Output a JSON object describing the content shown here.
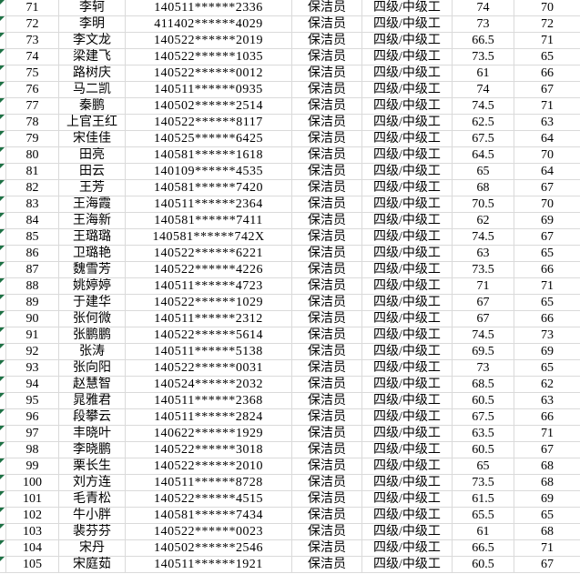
{
  "app": {
    "kind": "spreadsheet-table-view",
    "visible_row_range": "71-105"
  },
  "colors": {
    "background": "#ffffff",
    "gridline": "#dadada",
    "text": "#000000",
    "error_indicator_green": "#1e7145"
  },
  "icons": {
    "error_indicator": "green-triangle-top-left"
  },
  "table": {
    "column_keys": [
      "num",
      "name",
      "id_masked",
      "job",
      "level",
      "score1",
      "score2"
    ],
    "rows": [
      {
        "num": "71",
        "name": "李轲",
        "id_masked": "140511******2336",
        "job": "保洁员",
        "level": "四级/中级工",
        "score1": "74",
        "score2": "70"
      },
      {
        "num": "72",
        "name": "李明",
        "id_masked": "411402******4029",
        "job": "保洁员",
        "level": "四级/中级工",
        "score1": "73",
        "score2": "72"
      },
      {
        "num": "73",
        "name": "李文龙",
        "id_masked": "140522******2019",
        "job": "保洁员",
        "level": "四级/中级工",
        "score1": "66.5",
        "score2": "71"
      },
      {
        "num": "74",
        "name": "梁建飞",
        "id_masked": "140522******1035",
        "job": "保洁员",
        "level": "四级/中级工",
        "score1": "73.5",
        "score2": "65"
      },
      {
        "num": "75",
        "name": "路树庆",
        "id_masked": "140522******0012",
        "job": "保洁员",
        "level": "四级/中级工",
        "score1": "61",
        "score2": "66"
      },
      {
        "num": "76",
        "name": "马二凯",
        "id_masked": "140511******0935",
        "job": "保洁员",
        "level": "四级/中级工",
        "score1": "74",
        "score2": "67"
      },
      {
        "num": "77",
        "name": "秦鹏",
        "id_masked": "140502******2514",
        "job": "保洁员",
        "level": "四级/中级工",
        "score1": "74.5",
        "score2": "71"
      },
      {
        "num": "78",
        "name": "上官王红",
        "id_masked": "140522******8117",
        "job": "保洁员",
        "level": "四级/中级工",
        "score1": "62.5",
        "score2": "63"
      },
      {
        "num": "79",
        "name": "宋佳佳",
        "id_masked": "140525******6425",
        "job": "保洁员",
        "level": "四级/中级工",
        "score1": "67.5",
        "score2": "64"
      },
      {
        "num": "80",
        "name": "田亮",
        "id_masked": "140581******1618",
        "job": "保洁员",
        "level": "四级/中级工",
        "score1": "64.5",
        "score2": "70"
      },
      {
        "num": "81",
        "name": "田云",
        "id_masked": "140109******4535",
        "job": "保洁员",
        "level": "四级/中级工",
        "score1": "65",
        "score2": "64"
      },
      {
        "num": "82",
        "name": "王芳",
        "id_masked": "140581******7420",
        "job": "保洁员",
        "level": "四级/中级工",
        "score1": "68",
        "score2": "67"
      },
      {
        "num": "83",
        "name": "王海霞",
        "id_masked": "140511******2364",
        "job": "保洁员",
        "level": "四级/中级工",
        "score1": "70.5",
        "score2": "70"
      },
      {
        "num": "84",
        "name": "王海新",
        "id_masked": "140581******7411",
        "job": "保洁员",
        "level": "四级/中级工",
        "score1": "62",
        "score2": "69"
      },
      {
        "num": "85",
        "name": "王璐璐",
        "id_masked": "140581******742X",
        "job": "保洁员",
        "level": "四级/中级工",
        "score1": "74.5",
        "score2": "67"
      },
      {
        "num": "86",
        "name": "卫璐艳",
        "id_masked": "140522******6221",
        "job": "保洁员",
        "level": "四级/中级工",
        "score1": "63",
        "score2": "65"
      },
      {
        "num": "87",
        "name": "魏雪芳",
        "id_masked": "140522******4226",
        "job": "保洁员",
        "level": "四级/中级工",
        "score1": "73.5",
        "score2": "66"
      },
      {
        "num": "88",
        "name": "姚婷婷",
        "id_masked": "140511******4723",
        "job": "保洁员",
        "level": "四级/中级工",
        "score1": "71",
        "score2": "71"
      },
      {
        "num": "89",
        "name": "于建华",
        "id_masked": "140522******1029",
        "job": "保洁员",
        "level": "四级/中级工",
        "score1": "67",
        "score2": "65"
      },
      {
        "num": "90",
        "name": "张何微",
        "id_masked": "140511******2312",
        "job": "保洁员",
        "level": "四级/中级工",
        "score1": "67",
        "score2": "66"
      },
      {
        "num": "91",
        "name": "张鹏鹏",
        "id_masked": "140522******5614",
        "job": "保洁员",
        "level": "四级/中级工",
        "score1": "74.5",
        "score2": "73"
      },
      {
        "num": "92",
        "name": "张涛",
        "id_masked": "140511******5138",
        "job": "保洁员",
        "level": "四级/中级工",
        "score1": "69.5",
        "score2": "69"
      },
      {
        "num": "93",
        "name": "张向阳",
        "id_masked": "140522******0031",
        "job": "保洁员",
        "level": "四级/中级工",
        "score1": "73",
        "score2": "65"
      },
      {
        "num": "94",
        "name": "赵慧智",
        "id_masked": "140524******2032",
        "job": "保洁员",
        "level": "四级/中级工",
        "score1": "68.5",
        "score2": "62"
      },
      {
        "num": "95",
        "name": "晁雅君",
        "id_masked": "140511******2368",
        "job": "保洁员",
        "level": "四级/中级工",
        "score1": "60.5",
        "score2": "63"
      },
      {
        "num": "96",
        "name": "段攀云",
        "id_masked": "140511******2824",
        "job": "保洁员",
        "level": "四级/中级工",
        "score1": "67.5",
        "score2": "66"
      },
      {
        "num": "97",
        "name": "丰晓叶",
        "id_masked": "140622******1929",
        "job": "保洁员",
        "level": "四级/中级工",
        "score1": "63.5",
        "score2": "71"
      },
      {
        "num": "98",
        "name": "李晓鹏",
        "id_masked": "140522******3018",
        "job": "保洁员",
        "level": "四级/中级工",
        "score1": "60.5",
        "score2": "67"
      },
      {
        "num": "99",
        "name": "栗长生",
        "id_masked": "140522******2010",
        "job": "保洁员",
        "level": "四级/中级工",
        "score1": "65",
        "score2": "68"
      },
      {
        "num": "100",
        "name": "刘方连",
        "id_masked": "140511******8728",
        "job": "保洁员",
        "level": "四级/中级工",
        "score1": "73.5",
        "score2": "68"
      },
      {
        "num": "101",
        "name": "毛青松",
        "id_masked": "140522******4515",
        "job": "保洁员",
        "level": "四级/中级工",
        "score1": "61.5",
        "score2": "69"
      },
      {
        "num": "102",
        "name": "牛小胖",
        "id_masked": "140581******7434",
        "job": "保洁员",
        "level": "四级/中级工",
        "score1": "65.5",
        "score2": "65"
      },
      {
        "num": "103",
        "name": "裴芬芬",
        "id_masked": "140522******0023",
        "job": "保洁员",
        "level": "四级/中级工",
        "score1": "61",
        "score2": "68"
      },
      {
        "num": "104",
        "name": "宋丹",
        "id_masked": "140502******2546",
        "job": "保洁员",
        "level": "四级/中级工",
        "score1": "66.5",
        "score2": "71"
      },
      {
        "num": "105",
        "name": "宋庭茹",
        "id_masked": "140511******1921",
        "job": "保洁员",
        "level": "四级/中级工",
        "score1": "60.5",
        "score2": "67"
      }
    ]
  }
}
